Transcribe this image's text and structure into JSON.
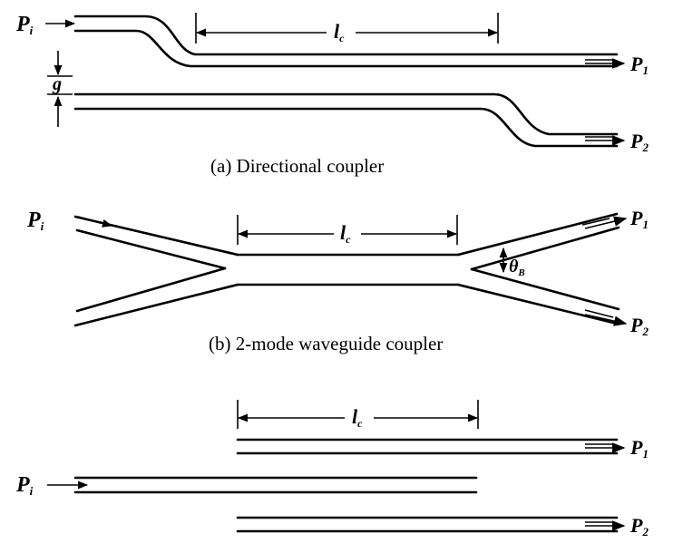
{
  "diagram_a": {
    "caption": "(a) Directional coupler",
    "input_label": "P",
    "input_sub": "i",
    "length_label": "l",
    "length_sub": "c",
    "gap_label": "g",
    "output1_label": "P",
    "output1_sub": "1",
    "output2_label": "P",
    "output2_sub": "2"
  },
  "diagram_b": {
    "caption": "(b) 2-mode waveguide coupler",
    "input_label": "P",
    "input_sub": "i",
    "length_label": "l",
    "length_sub": "c",
    "angle_label": "θ",
    "angle_sub": "B",
    "output1_label": "P",
    "output1_sub": "1",
    "output2_label": "P",
    "output2_sub": "2"
  },
  "diagram_c": {
    "input_label": "P",
    "input_sub": "i",
    "length_label": "l",
    "length_sub": "c",
    "output1_label": "P",
    "output1_sub": "1",
    "output2_label": "P",
    "output2_sub": "2"
  }
}
